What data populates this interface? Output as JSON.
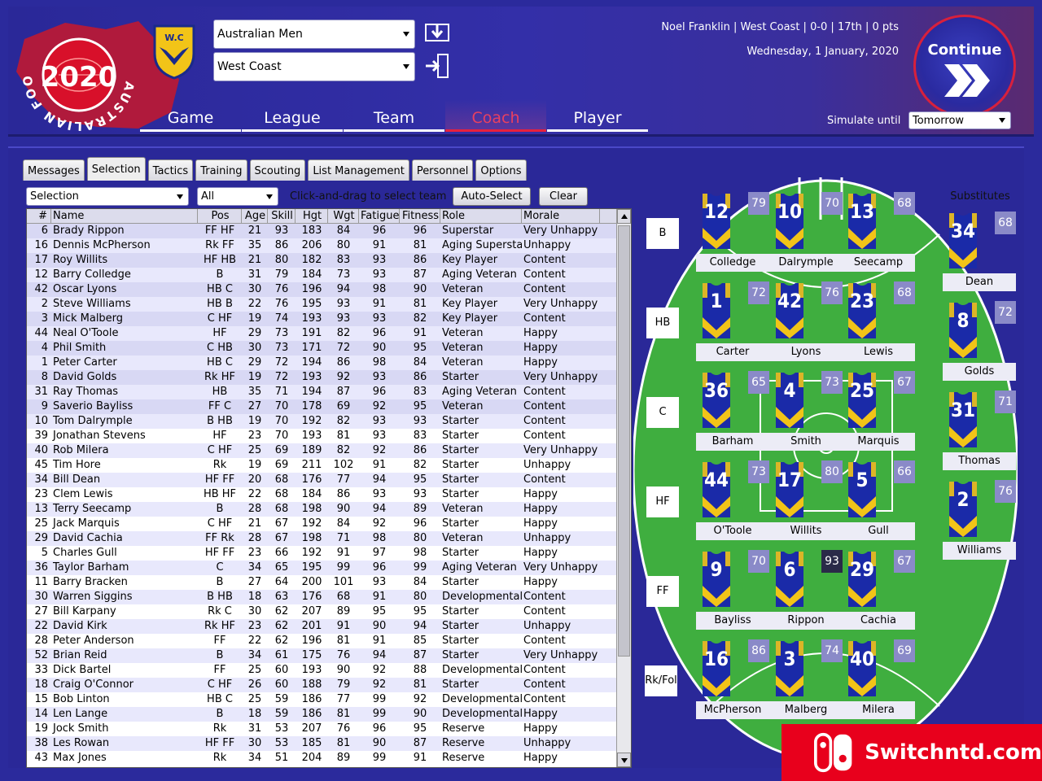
{
  "header": {
    "logo": {
      "circle_text": "AUSTRALIAN FOOTBALL COACH",
      "year": "2020"
    },
    "club_logo_text": "W.C",
    "league_combo": "Australian Men",
    "club_combo": "West Coast",
    "nav": [
      {
        "label": "Game",
        "active": false
      },
      {
        "label": "League",
        "active": false
      },
      {
        "label": "Team",
        "active": false
      },
      {
        "label": "Coach",
        "active": true
      },
      {
        "label": "Player",
        "active": false
      }
    ],
    "status_line": "Noel Franklin | West Coast | 0-0 | 17th | 0 pts",
    "date": "Wednesday, 1 January, 2020",
    "continue_label": "Continue",
    "simulate_label": "Simulate until",
    "simulate_value": "Tomorrow"
  },
  "tabs": [
    {
      "label": "Messages",
      "active": false
    },
    {
      "label": "Selection",
      "active": true
    },
    {
      "label": "Tactics",
      "active": false
    },
    {
      "label": "Training",
      "active": false
    },
    {
      "label": "Scouting",
      "active": false
    },
    {
      "label": "List Management",
      "active": false
    },
    {
      "label": "Personnel",
      "active": false
    },
    {
      "label": "Options",
      "active": false
    }
  ],
  "toolbar": {
    "selection_combo": "Selection",
    "filter_combo": "All",
    "hint": "Click-and-drag to select team",
    "auto_select": "Auto-Select",
    "clear": "Clear"
  },
  "table": {
    "headers": [
      "#",
      "Name",
      "Pos",
      "Age",
      "Skill",
      "Hgt",
      "Wgt",
      "Fatigue",
      "Fitness",
      "Role",
      "Morale"
    ],
    "rows": [
      [
        "6",
        "Brady Rippon",
        "FF HF",
        "21",
        "93",
        "183",
        "84",
        "96",
        "96",
        "Superstar",
        "Very Unhappy"
      ],
      [
        "16",
        "Dennis McPherson",
        "Rk FF",
        "35",
        "86",
        "206",
        "80",
        "91",
        "81",
        "Aging Superstar",
        "Unhappy"
      ],
      [
        "17",
        "Roy Willits",
        "HF HB",
        "21",
        "80",
        "182",
        "83",
        "93",
        "86",
        "Key Player",
        "Content"
      ],
      [
        "12",
        "Barry Colledge",
        "B",
        "31",
        "79",
        "184",
        "73",
        "93",
        "87",
        "Aging Veteran",
        "Content"
      ],
      [
        "42",
        "Oscar Lyons",
        "HB C",
        "30",
        "76",
        "196",
        "94",
        "98",
        "90",
        "Veteran",
        "Content"
      ],
      [
        "2",
        "Steve Williams",
        "HB B",
        "22",
        "76",
        "195",
        "93",
        "91",
        "81",
        "Key Player",
        "Very Unhappy"
      ],
      [
        "3",
        "Mick Malberg",
        "C HF",
        "19",
        "74",
        "193",
        "93",
        "93",
        "82",
        "Key Player",
        "Content"
      ],
      [
        "44",
        "Neal O'Toole",
        "HF",
        "29",
        "73",
        "191",
        "82",
        "96",
        "91",
        "Veteran",
        "Happy"
      ],
      [
        "4",
        "Phil Smith",
        "C HB",
        "30",
        "73",
        "171",
        "72",
        "90",
        "95",
        "Veteran",
        "Happy"
      ],
      [
        "1",
        "Peter Carter",
        "HB C",
        "29",
        "72",
        "194",
        "86",
        "98",
        "84",
        "Veteran",
        "Happy"
      ],
      [
        "8",
        "David Golds",
        "Rk HF",
        "19",
        "72",
        "193",
        "92",
        "93",
        "86",
        "Starter",
        "Very Unhappy"
      ],
      [
        "31",
        "Ray Thomas",
        "HB",
        "35",
        "71",
        "194",
        "87",
        "96",
        "83",
        "Aging Veteran",
        "Content"
      ],
      [
        "9",
        "Saverio Bayliss",
        "FF C",
        "27",
        "70",
        "178",
        "69",
        "92",
        "95",
        "Veteran",
        "Content"
      ],
      [
        "10",
        "Tom Dalrymple",
        "B HB",
        "19",
        "70",
        "192",
        "82",
        "93",
        "93",
        "Starter",
        "Content"
      ],
      [
        "39",
        "Jonathan Stevens",
        "HF",
        "23",
        "70",
        "193",
        "81",
        "93",
        "83",
        "Starter",
        "Content"
      ],
      [
        "40",
        "Rob Milera",
        "C HF",
        "25",
        "69",
        "189",
        "82",
        "92",
        "86",
        "Starter",
        "Very Unhappy"
      ],
      [
        "45",
        "Tim Hore",
        "Rk",
        "19",
        "69",
        "211",
        "102",
        "91",
        "82",
        "Starter",
        "Unhappy"
      ],
      [
        "34",
        "Bill Dean",
        "HF FF",
        "20",
        "68",
        "176",
        "77",
        "94",
        "95",
        "Starter",
        "Content"
      ],
      [
        "23",
        "Clem Lewis",
        "HB HF",
        "22",
        "68",
        "184",
        "86",
        "93",
        "93",
        "Starter",
        "Happy"
      ],
      [
        "13",
        "Terry Seecamp",
        "B",
        "28",
        "68",
        "198",
        "90",
        "94",
        "89",
        "Veteran",
        "Happy"
      ],
      [
        "25",
        "Jack Marquis",
        "C HF",
        "21",
        "67",
        "192",
        "84",
        "92",
        "96",
        "Starter",
        "Happy"
      ],
      [
        "29",
        "David Cachia",
        "FF Rk",
        "28",
        "67",
        "198",
        "71",
        "98",
        "80",
        "Veteran",
        "Unhappy"
      ],
      [
        "5",
        "Charles Gull",
        "HF FF",
        "23",
        "66",
        "192",
        "91",
        "97",
        "98",
        "Starter",
        "Happy"
      ],
      [
        "36",
        "Taylor Barham",
        "C",
        "34",
        "65",
        "195",
        "99",
        "96",
        "99",
        "Aging Veteran",
        "Very Unhappy"
      ],
      [
        "11",
        "Barry Bracken",
        "B",
        "27",
        "64",
        "200",
        "101",
        "93",
        "84",
        "Starter",
        "Happy"
      ],
      [
        "30",
        "Warren Siggins",
        "B HB",
        "18",
        "63",
        "176",
        "68",
        "91",
        "80",
        "Developmental",
        "Content"
      ],
      [
        "27",
        "Bill Karpany",
        "Rk C",
        "30",
        "62",
        "207",
        "89",
        "95",
        "95",
        "Starter",
        "Content"
      ],
      [
        "22",
        "David Kirk",
        "Rk HF",
        "23",
        "62",
        "201",
        "91",
        "90",
        "94",
        "Starter",
        "Unhappy"
      ],
      [
        "28",
        "Peter Anderson",
        "FF",
        "22",
        "62",
        "196",
        "81",
        "91",
        "85",
        "Starter",
        "Content"
      ],
      [
        "52",
        "Brian Reid",
        "B",
        "34",
        "61",
        "175",
        "76",
        "94",
        "87",
        "Starter",
        "Very Unhappy"
      ],
      [
        "33",
        "Dick Bartel",
        "FF",
        "25",
        "60",
        "193",
        "90",
        "92",
        "88",
        "Developmental",
        "Content"
      ],
      [
        "18",
        "Craig O'Connor",
        "C HF",
        "26",
        "60",
        "188",
        "79",
        "92",
        "81",
        "Starter",
        "Content"
      ],
      [
        "15",
        "Bob Linton",
        "HB C",
        "25",
        "59",
        "186",
        "77",
        "99",
        "92",
        "Developmental",
        "Content"
      ],
      [
        "14",
        "Len Lange",
        "B",
        "18",
        "59",
        "186",
        "81",
        "99",
        "90",
        "Developmental",
        "Happy"
      ],
      [
        "19",
        "Jock Smith",
        "Rk",
        "31",
        "53",
        "207",
        "76",
        "96",
        "95",
        "Reserve",
        "Happy"
      ],
      [
        "38",
        "Les Rowan",
        "HF FF",
        "30",
        "53",
        "185",
        "81",
        "90",
        "87",
        "Reserve",
        "Unhappy"
      ],
      [
        "43",
        "Max Jones",
        "Rk",
        "34",
        "51",
        "204",
        "89",
        "99",
        "91",
        "Reserve",
        "Happy"
      ]
    ],
    "selected_rows": 14
  },
  "field": {
    "lines": [
      "B",
      "HB",
      "C",
      "HF",
      "FF",
      "Rk/Fol"
    ],
    "players": [
      [
        {
          "num": "12",
          "rating": "79",
          "name": "Colledge"
        },
        {
          "num": "10",
          "rating": "70",
          "name": "Dalrymple"
        },
        {
          "num": "13",
          "rating": "68",
          "name": "Seecamp"
        }
      ],
      [
        {
          "num": "1",
          "rating": "72",
          "name": "Carter"
        },
        {
          "num": "42",
          "rating": "76",
          "name": "Lyons"
        },
        {
          "num": "23",
          "rating": "68",
          "name": "Lewis"
        }
      ],
      [
        {
          "num": "36",
          "rating": "65",
          "name": "Barham"
        },
        {
          "num": "4",
          "rating": "73",
          "name": "Smith"
        },
        {
          "num": "25",
          "rating": "67",
          "name": "Marquis"
        }
      ],
      [
        {
          "num": "44",
          "rating": "73",
          "name": "O'Toole"
        },
        {
          "num": "17",
          "rating": "80",
          "name": "Willits"
        },
        {
          "num": "5",
          "rating": "66",
          "name": "Gull"
        }
      ],
      [
        {
          "num": "9",
          "rating": "70",
          "name": "Bayliss"
        },
        {
          "num": "6",
          "rating": "93",
          "name": "Rippon"
        },
        {
          "num": "29",
          "rating": "67",
          "name": "Cachia"
        }
      ],
      [
        {
          "num": "16",
          "rating": "86",
          "name": "McPherson"
        },
        {
          "num": "3",
          "rating": "74",
          "name": "Malberg"
        },
        {
          "num": "40",
          "rating": "69",
          "name": "Milera"
        }
      ]
    ],
    "subs_title": "Substitutes",
    "subs": [
      {
        "num": "34",
        "rating": "68",
        "name": "Dean"
      },
      {
        "num": "8",
        "rating": "72",
        "name": "Golds"
      },
      {
        "num": "31",
        "rating": "71",
        "name": "Thomas"
      },
      {
        "num": "2",
        "rating": "76",
        "name": "Williams"
      }
    ]
  },
  "watermark": "Switchntd.com",
  "colors": {
    "accent_red": "#e8203c",
    "jersey_blue": "#1a2aa8",
    "jersey_yellow": "#f2c418",
    "field_green": "#3fae3f",
    "rating_tile": "#8a8ac8",
    "rating_tile_top": "#2a2a48"
  }
}
